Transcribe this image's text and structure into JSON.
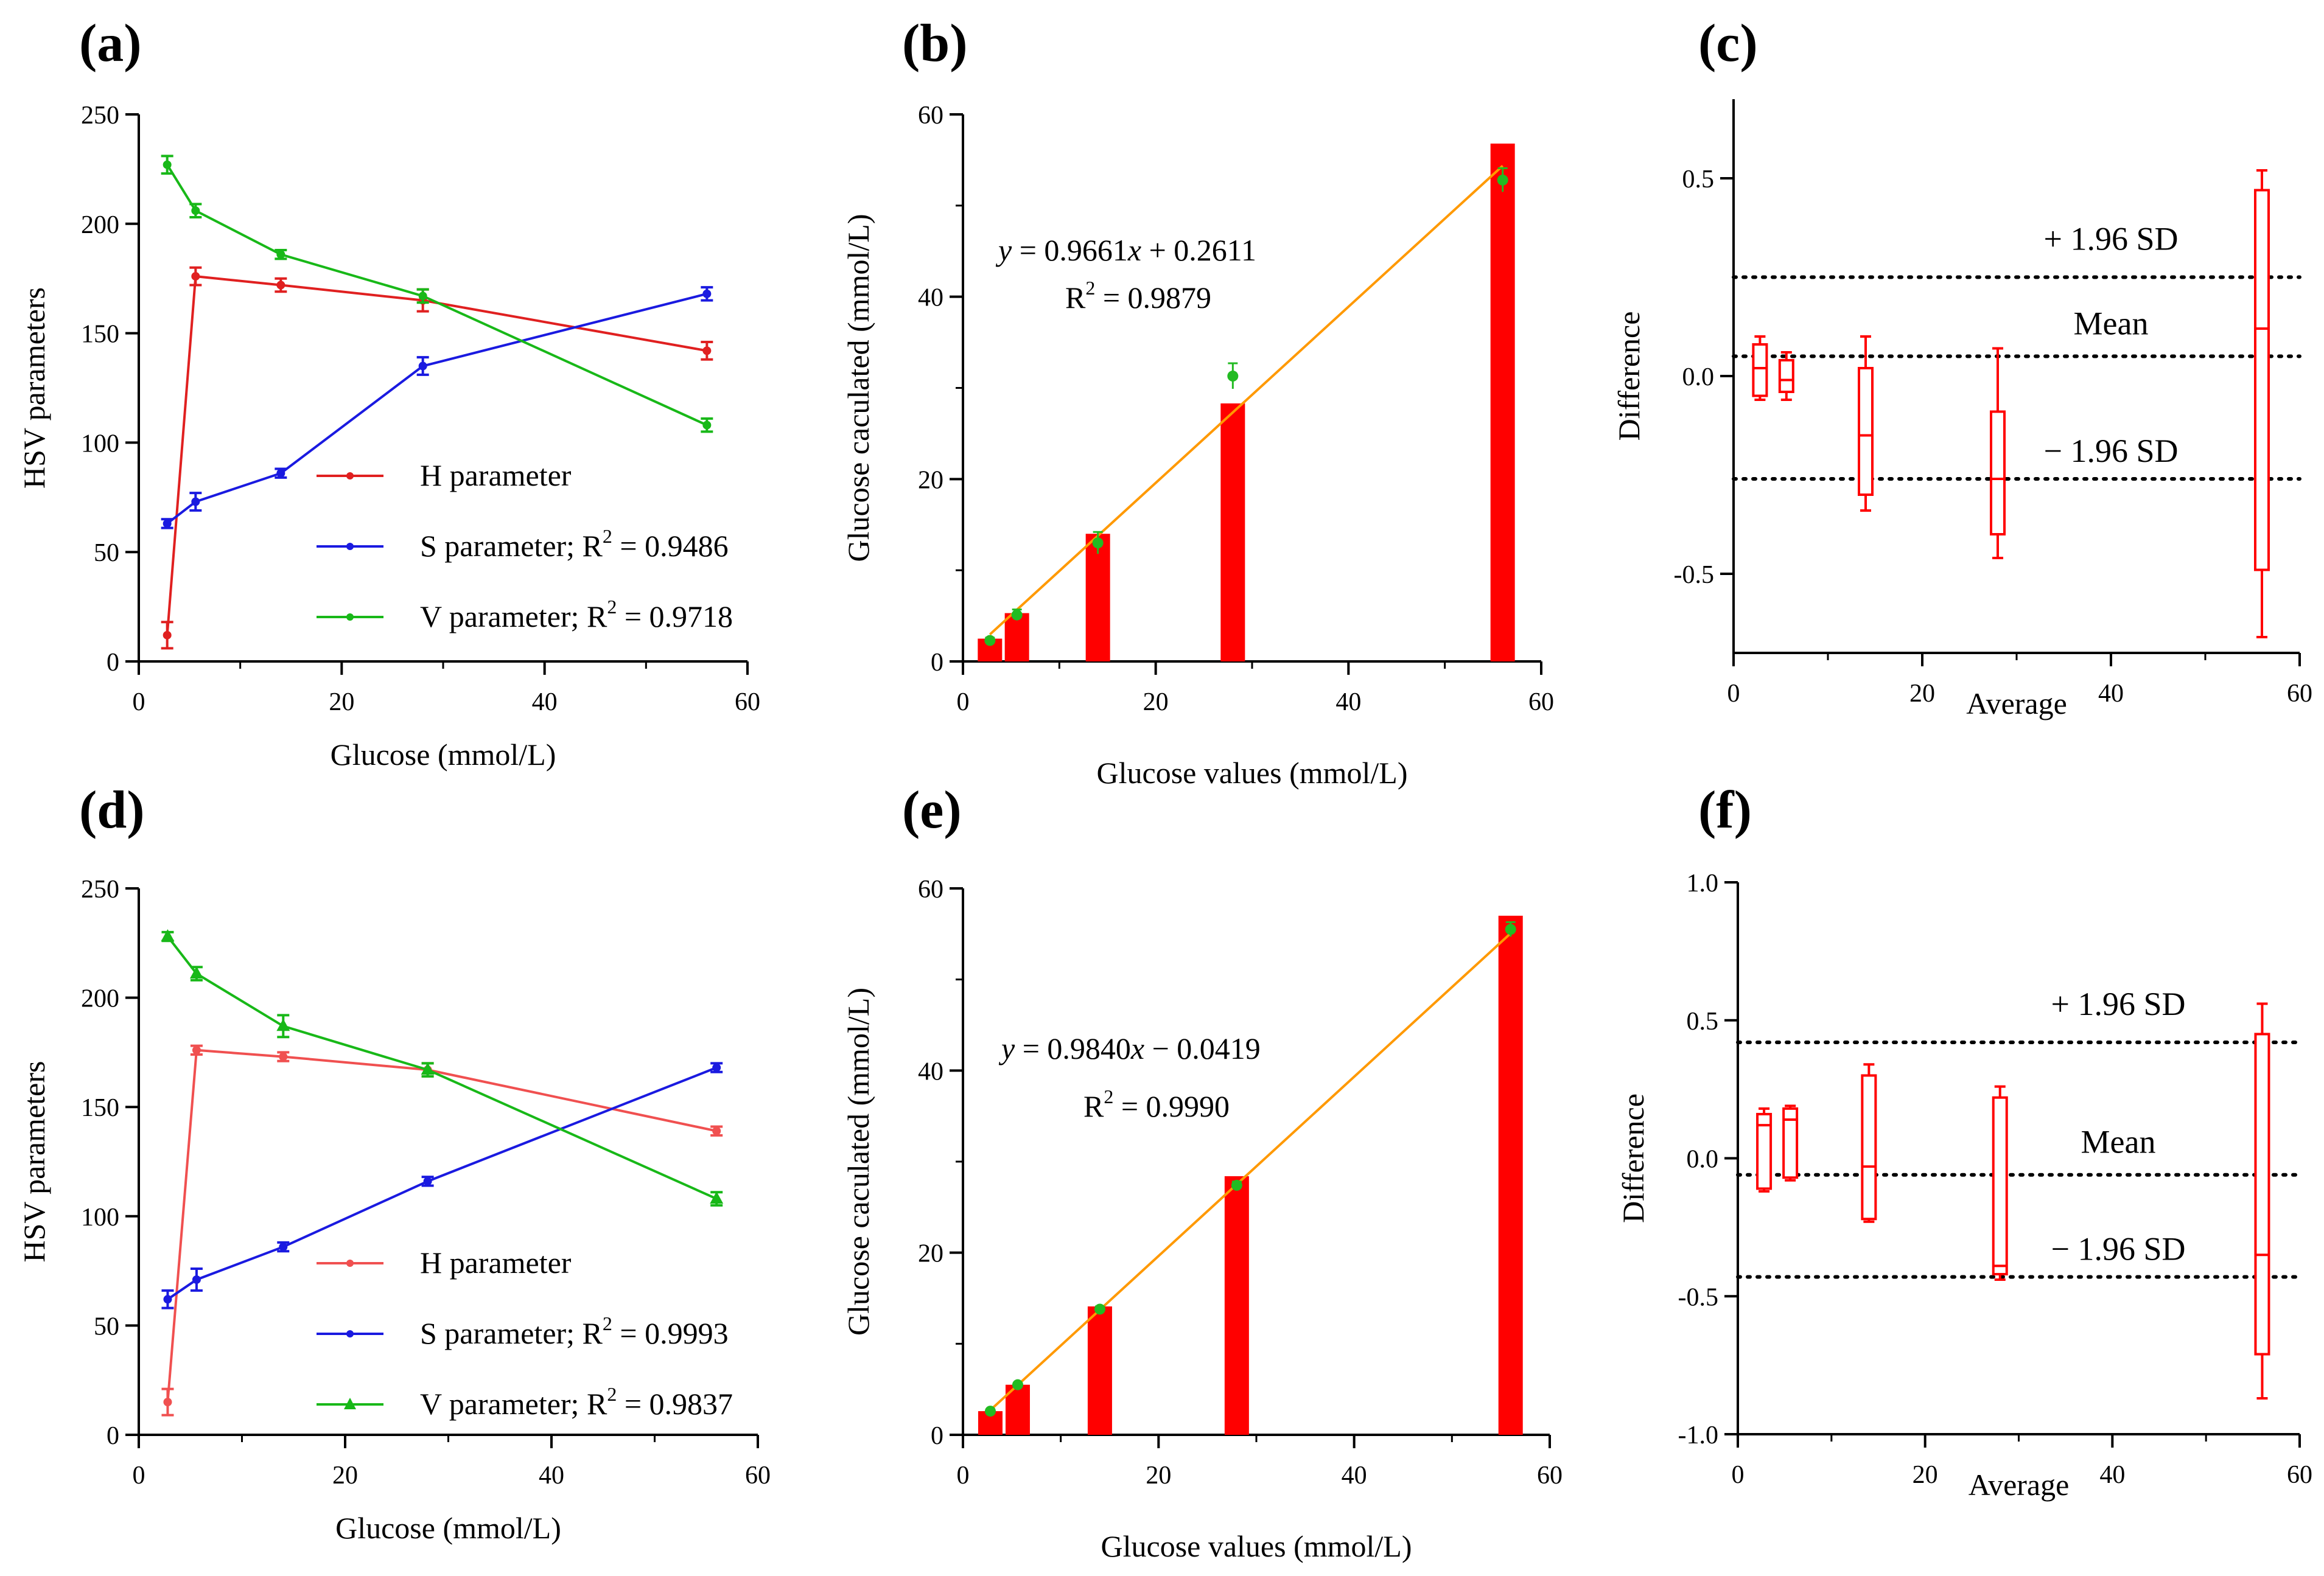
{
  "chart_data": [
    {
      "panel": "(a)",
      "type": "line",
      "xlabel": "Glucose (mmol/L)",
      "ylabel": "HSV parameters",
      "xlim": [
        0,
        60
      ],
      "ylim": [
        0,
        250
      ],
      "xticks": [
        "0",
        "20",
        "40",
        "60"
      ],
      "yticks": [
        "0",
        "50",
        "100",
        "150",
        "200",
        "250"
      ],
      "x": [
        2.8,
        5.6,
        14,
        28,
        56
      ],
      "series": [
        {
          "name": "H parameter",
          "legend": "H parameter",
          "color": "#e02020",
          "marker": "dot",
          "values": [
            12,
            176,
            172,
            165,
            142
          ],
          "errors": [
            6,
            4,
            3,
            5,
            4
          ]
        },
        {
          "name": "S parameter",
          "legend": "S parameter; R",
          "r2": " = 0.9486",
          "color": "#1a1ae0",
          "marker": "dot",
          "values": [
            63,
            73,
            86,
            135,
            168
          ],
          "errors": [
            2,
            4,
            2,
            4,
            3
          ]
        },
        {
          "name": "V parameter",
          "legend": "V parameter; R",
          "r2": " = 0.9718",
          "color": "#18b818",
          "marker": "dot",
          "values": [
            227,
            206,
            186,
            167,
            108
          ],
          "errors": [
            4,
            3,
            2,
            3,
            3
          ]
        }
      ]
    },
    {
      "panel": "(b)",
      "type": "bar",
      "xlabel": "Glucose values (mmol/L)",
      "ylabel": "Glucose caculated (mmol/L)",
      "xlim": [
        0,
        60
      ],
      "ylim": [
        0,
        60
      ],
      "xticks": [
        "0",
        "20",
        "40",
        "60"
      ],
      "yticks": [
        "0",
        "20",
        "40",
        "60"
      ],
      "x": [
        2.8,
        5.6,
        14,
        28,
        56
      ],
      "values": [
        2.5,
        5.3,
        14,
        28.3,
        56.8
      ],
      "points": [
        2.3,
        5.1,
        13,
        31.3,
        52.8
      ],
      "point_errors": [
        0.3,
        0.6,
        1.2,
        1.4,
        1.3
      ],
      "fit": {
        "slope": 0.9661,
        "intercept": 0.2611
      },
      "eq_y": "y",
      "eq_rest": " = 0.9661",
      "eq_x": "x",
      "eq_tail": " + 0.2611",
      "r2_text": " = 0.9879",
      "bar_color": "#ff0000",
      "point_color": "#22bb22",
      "fit_color": "#ff9900"
    },
    {
      "panel": "(c)",
      "type": "box",
      "xlabel": "Average",
      "ylabel": "Difference",
      "xlim": [
        0,
        60
      ],
      "ylim": [
        -0.7,
        0.7
      ],
      "xticks": [
        "0",
        "20",
        "40",
        "60"
      ],
      "yticks": [
        "0.5",
        "0.0",
        "-0.5"
      ],
      "boxes": [
        {
          "x": 2.8,
          "min": -0.06,
          "q1": -0.05,
          "median": 0.02,
          "q3": 0.08,
          "max": 0.1
        },
        {
          "x": 5.6,
          "min": -0.06,
          "q1": -0.04,
          "median": -0.01,
          "q3": 0.04,
          "max": 0.06
        },
        {
          "x": 14,
          "min": -0.34,
          "q1": -0.3,
          "median": -0.15,
          "q3": 0.02,
          "max": 0.1
        },
        {
          "x": 28,
          "min": -0.46,
          "q1": -0.4,
          "median": -0.26,
          "q3": -0.09,
          "max": 0.07
        },
        {
          "x": 56,
          "min": -0.66,
          "q1": -0.49,
          "median": 0.12,
          "q3": 0.47,
          "max": 0.52
        }
      ],
      "upper_sd": 0.25,
      "mean": 0.05,
      "lower_sd": -0.26,
      "upper_label": "+ 1.96 SD",
      "mean_label": "Mean",
      "lower_label": "− 1.96 SD",
      "box_color": "#ff0000"
    },
    {
      "panel": "(d)",
      "type": "line",
      "xlabel": "Glucose (mmol/L)",
      "ylabel": "HSV parameters",
      "xlim": [
        0,
        60
      ],
      "ylim": [
        0,
        250
      ],
      "xticks": [
        "0",
        "20",
        "40",
        "60"
      ],
      "yticks": [
        "0",
        "50",
        "100",
        "150",
        "200",
        "250"
      ],
      "x": [
        2.8,
        5.6,
        14,
        28,
        56
      ],
      "series": [
        {
          "name": "H parameter",
          "legend": "H parameter",
          "color": "#f05050",
          "marker": "dot",
          "values": [
            15,
            176,
            173,
            167,
            139
          ],
          "errors": [
            6,
            2,
            2,
            3,
            2
          ]
        },
        {
          "name": "S parameter",
          "legend": "S parameter; R",
          "r2": " = 0.9993",
          "color": "#1a1ae0",
          "marker": "dot",
          "values": [
            62,
            71,
            86,
            116,
            168
          ],
          "errors": [
            4,
            5,
            2,
            2,
            2
          ]
        },
        {
          "name": "V parameter",
          "legend": "V parameter; R",
          "r2": " = 0.9837",
          "color": "#18b818",
          "marker": "triangle",
          "values": [
            228,
            211,
            187,
            167,
            108
          ],
          "errors": [
            2,
            3,
            5,
            3,
            3
          ]
        }
      ]
    },
    {
      "panel": "(e)",
      "type": "bar",
      "xlabel": "Glucose values (mmol/L)",
      "ylabel": "Glucose caculated (mmol/L)",
      "xlim": [
        0,
        60
      ],
      "ylim": [
        0,
        60
      ],
      "xticks": [
        "0",
        "20",
        "40",
        "60"
      ],
      "yticks": [
        "0",
        "20",
        "40",
        "60"
      ],
      "x": [
        2.8,
        5.6,
        14,
        28,
        56
      ],
      "values": [
        2.6,
        5.5,
        14.1,
        28.4,
        57
      ],
      "points": [
        2.6,
        5.5,
        13.8,
        27.4,
        55.5
      ],
      "point_errors": [
        0.2,
        0.2,
        0.3,
        0.4,
        0.8
      ],
      "fit": {
        "slope": 0.984,
        "intercept": -0.0419
      },
      "eq_y": "y",
      "eq_rest": " = 0.9840",
      "eq_x": "x",
      "eq_tail": " − 0.0419",
      "r2_text": " = 0.9990",
      "bar_color": "#ff0000",
      "point_color": "#22bb22",
      "fit_color": "#ff9900"
    },
    {
      "panel": "(f)",
      "type": "box",
      "xlabel": "Average",
      "ylabel": "Difference",
      "xlim": [
        0,
        60
      ],
      "ylim": [
        -1.0,
        1.0
      ],
      "xticks": [
        "0",
        "20",
        "40",
        "60"
      ],
      "yticks": [
        "1.0",
        "0.5",
        "0.0",
        "-0.5",
        "-1.0"
      ],
      "boxes": [
        {
          "x": 2.8,
          "min": -0.12,
          "q1": -0.11,
          "median": 0.12,
          "q3": 0.16,
          "max": 0.18
        },
        {
          "x": 5.6,
          "min": -0.08,
          "q1": -0.07,
          "median": 0.14,
          "q3": 0.18,
          "max": 0.19
        },
        {
          "x": 14,
          "min": -0.23,
          "q1": -0.22,
          "median": -0.03,
          "q3": 0.3,
          "max": 0.34
        },
        {
          "x": 28,
          "min": -0.44,
          "q1": -0.42,
          "median": -0.39,
          "q3": 0.22,
          "max": 0.26
        },
        {
          "x": 56,
          "min": -0.87,
          "q1": -0.71,
          "median": -0.35,
          "q3": 0.45,
          "max": 0.56
        }
      ],
      "upper_sd": 0.42,
      "mean": -0.06,
      "lower_sd": -0.43,
      "upper_label": "+ 1.96 SD",
      "mean_label": "Mean",
      "lower_label": "− 1.96 SD",
      "box_color": "#ff0000"
    }
  ]
}
